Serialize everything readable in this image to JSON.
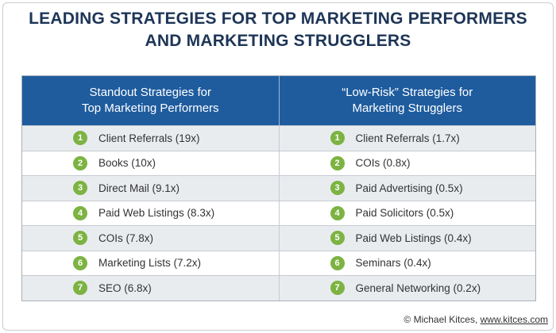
{
  "title": {
    "line1": "LEADING STRATEGIES FOR TOP MARKETING PERFORMERS",
    "line2": "AND MARKETING STRUGGLERS"
  },
  "table": {
    "headers": [
      {
        "line1": "Standout Strategies for",
        "line2": "Top Marketing Performers"
      },
      {
        "line1": "“Low-Risk” Strategies for",
        "line2": "Marketing Strugglers"
      }
    ],
    "rows": [
      [
        {
          "rank": 1,
          "text": "Client Referrals (19x)"
        },
        {
          "rank": 1,
          "text": "Client Referrals (1.7x)"
        }
      ],
      [
        {
          "rank": 2,
          "text": "Books (10x)"
        },
        {
          "rank": 2,
          "text": "COIs (0.8x)"
        }
      ],
      [
        {
          "rank": 3,
          "text": "Direct Mail (9.1x)"
        },
        {
          "rank": 3,
          "text": "Paid Advertising (0.5x)"
        }
      ],
      [
        {
          "rank": 4,
          "text": "Paid Web Listings (8.3x)"
        },
        {
          "rank": 4,
          "text": "Paid Solicitors (0.5x)"
        }
      ],
      [
        {
          "rank": 5,
          "text": "COIs (7.8x)"
        },
        {
          "rank": 5,
          "text": "Paid Web Listings (0.4x)"
        }
      ],
      [
        {
          "rank": 6,
          "text": "Marketing Lists (7.2x)"
        },
        {
          "rank": 6,
          "text": "Seminars (0.4x)"
        }
      ],
      [
        {
          "rank": 7,
          "text": "SEO (6.8x)"
        },
        {
          "rank": 7,
          "text": "General Networking (0.2x)"
        }
      ]
    ]
  },
  "footer": {
    "credit": "© Michael Kitces,",
    "link": "www.kitces.com"
  }
}
